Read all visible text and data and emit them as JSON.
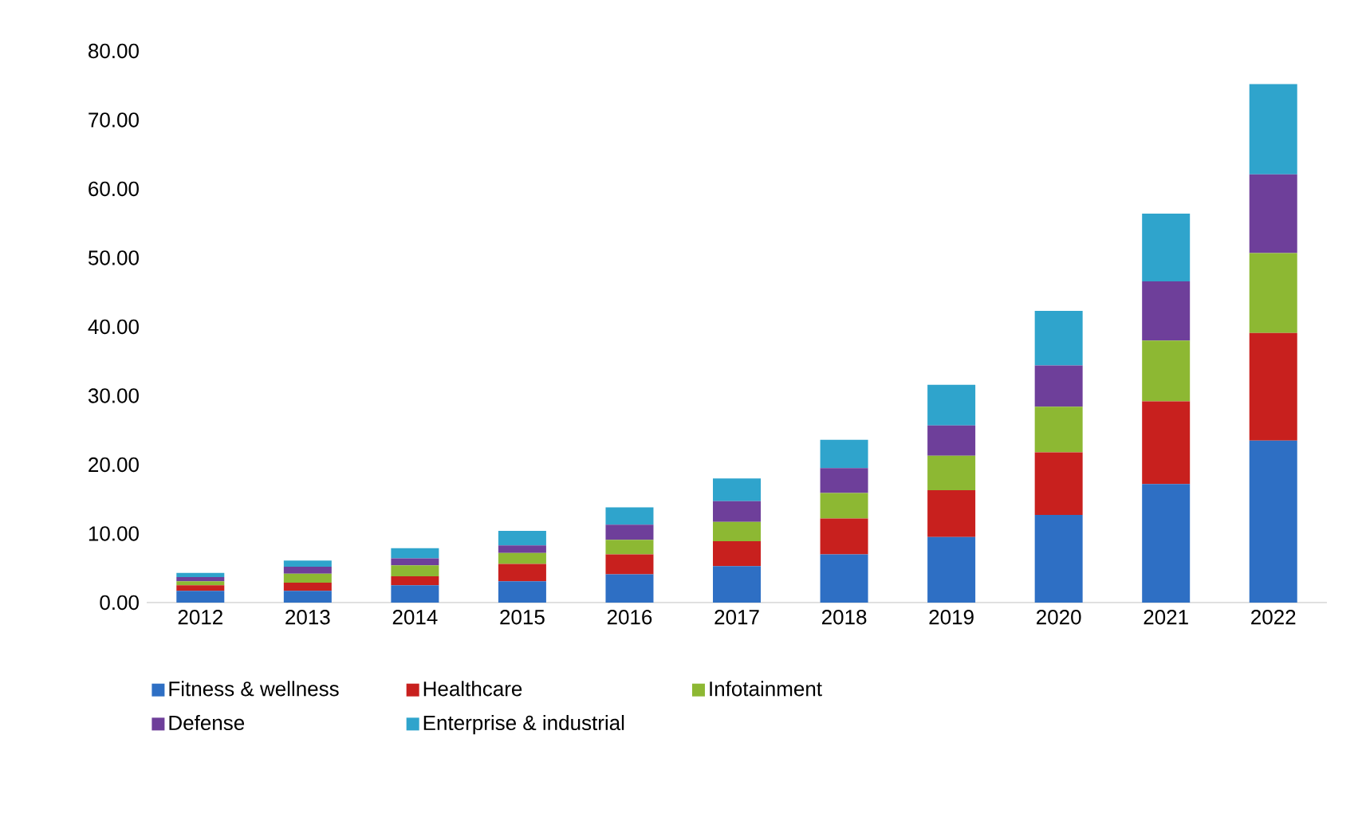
{
  "chart_data": {
    "type": "bar",
    "stacked": true,
    "categories": [
      "2012",
      "2013",
      "2014",
      "2015",
      "2016",
      "2017",
      "2018",
      "2019",
      "2020",
      "2021",
      "2022"
    ],
    "series": [
      {
        "name": "Fitness & wellness",
        "color": "#2e6fc4",
        "values": [
          1.7,
          1.7,
          2.5,
          3.1,
          4.1,
          5.3,
          7.0,
          9.5,
          12.7,
          17.2,
          23.5
        ]
      },
      {
        "name": "Healthcare",
        "color": "#c8201e",
        "values": [
          0.8,
          1.2,
          1.3,
          2.5,
          2.9,
          3.6,
          5.2,
          6.8,
          9.1,
          12.0,
          15.6
        ]
      },
      {
        "name": "Infotainment",
        "color": "#8db833",
        "values": [
          0.6,
          1.3,
          1.6,
          1.6,
          2.1,
          2.8,
          3.7,
          5.0,
          6.6,
          8.8,
          11.6
        ]
      },
      {
        "name": "Defense",
        "color": "#6e3f9a",
        "values": [
          0.6,
          1.0,
          1.0,
          1.1,
          2.2,
          3.0,
          3.6,
          4.4,
          6.0,
          8.6,
          11.4
        ]
      },
      {
        "name": "Enterprise & industrial",
        "color": "#2fa4cc",
        "values": [
          0.6,
          0.9,
          1.5,
          2.1,
          2.5,
          3.3,
          4.1,
          5.9,
          7.9,
          9.8,
          13.1
        ]
      }
    ],
    "ylim": [
      0,
      80
    ],
    "yticks": [
      {
        "value": 0,
        "label": "0.00"
      },
      {
        "value": 10,
        "label": "10.00"
      },
      {
        "value": 20,
        "label": "20.00"
      },
      {
        "value": 30,
        "label": "30.00"
      },
      {
        "value": 40,
        "label": "40.00"
      },
      {
        "value": 50,
        "label": "50.00"
      },
      {
        "value": 60,
        "label": "60.00"
      },
      {
        "value": 70,
        "label": "70.00"
      },
      {
        "value": 80,
        "label": "80.00"
      }
    ],
    "legend": "bottom",
    "grid": false
  }
}
